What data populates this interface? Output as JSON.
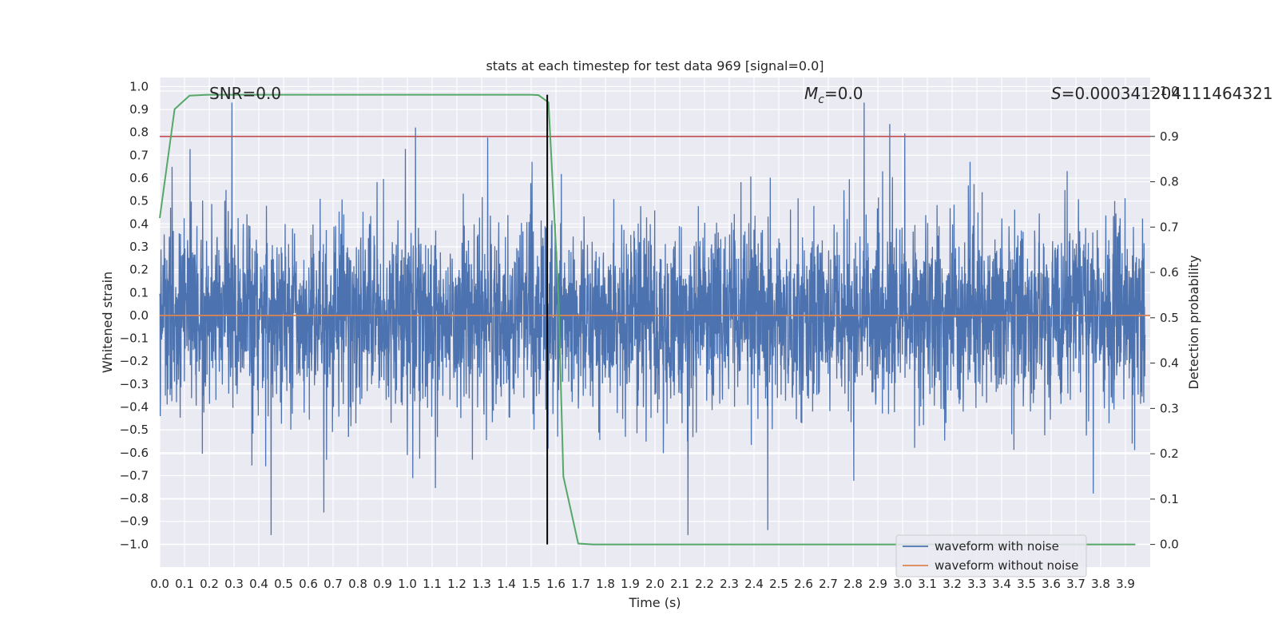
{
  "chart_data": {
    "type": "line",
    "title": "stats at each timestep for test data 969 [signal=0.0]",
    "xlabel": "Time (s)",
    "ylabel": "Whitened strain",
    "y2label": "Detection probability",
    "xlim": [
      0.0,
      4.0
    ],
    "ylim": [
      -1.1,
      1.04
    ],
    "y2lim": [
      -0.05,
      1.03
    ],
    "xticks": [
      "0.0",
      "0.1",
      "0.2",
      "0.3",
      "0.4",
      "0.5",
      "0.6",
      "0.7",
      "0.8",
      "0.9",
      "1.0",
      "1.1",
      "1.2",
      "1.3",
      "1.4",
      "1.5",
      "1.6",
      "1.7",
      "1.8",
      "1.9",
      "2.0",
      "2.1",
      "2.2",
      "2.3",
      "2.4",
      "2.5",
      "2.6",
      "2.7",
      "2.8",
      "2.9",
      "3.0",
      "3.1",
      "3.2",
      "3.3",
      "3.4",
      "3.5",
      "3.6",
      "3.7",
      "3.8",
      "3.9"
    ],
    "yticks": [
      "1.0",
      "0.9",
      "0.8",
      "0.7",
      "0.6",
      "0.5",
      "0.4",
      "0.3",
      "0.2",
      "0.1",
      "0.0",
      "−0.1",
      "−0.2",
      "−0.3",
      "−0.4",
      "−0.5",
      "−0.6",
      "−0.7",
      "−0.8",
      "−0.9",
      "−1.0"
    ],
    "y2ticks": [
      "1.0",
      "0.9",
      "0.8",
      "0.7",
      "0.6",
      "0.5",
      "0.4",
      "0.3",
      "0.2",
      "0.1",
      "0.0"
    ],
    "annotations": {
      "snr": "SNR=0.0",
      "mc_symbol": "M",
      "mc_sub": "c",
      "mc_value": "=0.0",
      "s_symbol": "S",
      "s_value": "=0.000341204111464321"
    },
    "series": [
      {
        "name": "waveform with noise",
        "color": "#4c72b0",
        "description": "whitened noise, ~0.15 std, peaks to ±0.95",
        "amplitude_std": 0.15,
        "samples": 4000
      },
      {
        "name": "waveform without noise",
        "color": "#dd8452",
        "values_constant": 0.0
      },
      {
        "name": "detection probability",
        "color": "#55a868",
        "x": [
          0.0,
          0.06,
          0.12,
          0.2,
          0.5,
          1.0,
          1.5,
          1.53,
          1.57,
          1.61,
          1.63,
          1.69,
          1.75,
          1.8,
          2.5,
          3.0,
          3.5,
          3.94
        ],
        "y": [
          0.72,
          0.96,
          0.99,
          0.992,
          0.992,
          0.992,
          0.992,
          0.991,
          0.975,
          0.55,
          0.15,
          0.002,
          0.0,
          0.0,
          0.0,
          0.0,
          0.0,
          0.0
        ]
      },
      {
        "name": "threshold",
        "color": "#c44e52",
        "y2_value": 0.9
      },
      {
        "name": "trigger time",
        "color": "#000000",
        "x_value": 1.565
      }
    ],
    "legend": {
      "position": "lower-right",
      "entries": [
        "waveform with noise",
        "waveform without noise"
      ]
    }
  }
}
